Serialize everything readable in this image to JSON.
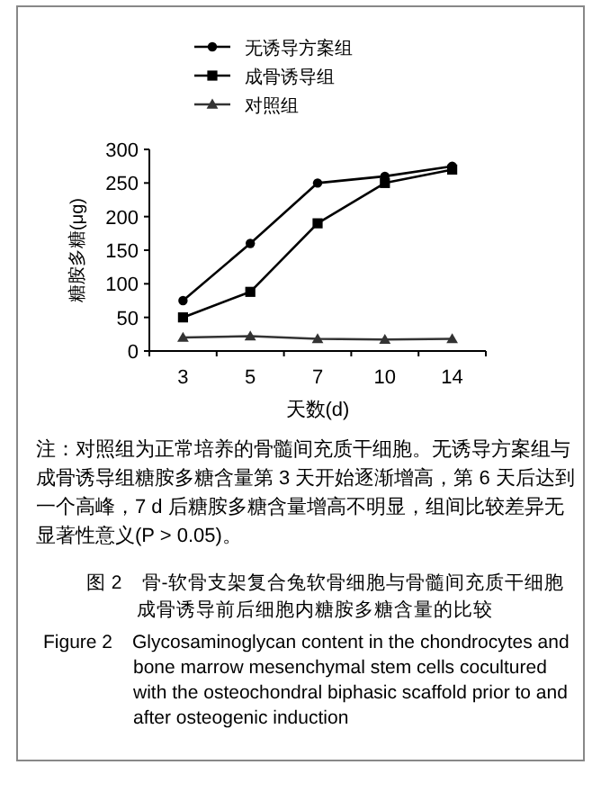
{
  "chart_data": {
    "type": "line",
    "categories": [
      "3",
      "5",
      "7",
      "10",
      "14"
    ],
    "xlabel": "天数(d)",
    "ylabel": "糖胺多糖(μg)",
    "ylim": [
      0,
      300
    ],
    "yticks": [
      0,
      50,
      100,
      150,
      200,
      250,
      300
    ],
    "grid": false,
    "legend": "top",
    "series": [
      {
        "name": "无诱导方案组",
        "color": "#000000",
        "marker": "circle",
        "values": [
          75,
          160,
          250,
          260,
          275
        ]
      },
      {
        "name": "成骨诱导组",
        "color": "#000000",
        "marker": "square",
        "values": [
          50,
          88,
          190,
          250,
          270
        ]
      },
      {
        "name": "对照组",
        "color": "#333333",
        "marker": "triangle",
        "values": [
          20,
          22,
          18,
          17,
          18
        ]
      }
    ],
    "annotations": [
      "注：对照组为正常培养的骨髓间充质干细胞。无诱导方案组与成骨诱导组糖胺多糖含量第 3 天开始逐渐增高，第 6 天后达到一个高峰，7 d 后糖胺多糖含量增高不明显，组间比较差异无显著性意义(P > 0.05)。",
      "图 2　骨-软骨支架复合兔软骨细胞与骨髓间充质干细胞成骨诱导前后细胞内糖胺多糖含量的比较",
      "Figure 2　Glycosaminoglycan content in the chondrocytes and bone marrow mesenchymal stem cells cocultured with the osteochondral biphasic scaffold prior to and after osteogenic induction"
    ]
  }
}
